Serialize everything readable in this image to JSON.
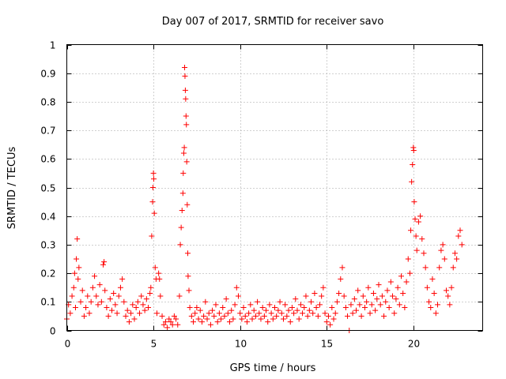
{
  "chart_data": {
    "type": "scatter",
    "title": "Day 007 of 2017, SRMTID for receiver savo",
    "xlabel": "GPS time / hours",
    "ylabel": "SRMTID / TECUs",
    "xlim": [
      0,
      24
    ],
    "ylim": [
      0,
      1
    ],
    "x_ticks": [
      0,
      5,
      10,
      15,
      20
    ],
    "x_tick_labels": [
      "0",
      "5",
      "10",
      "15",
      "20"
    ],
    "y_ticks": [
      0,
      0.1,
      0.2,
      0.3,
      0.4,
      0.5,
      0.6,
      0.7,
      0.8,
      0.9,
      1
    ],
    "y_tick_labels": [
      "0",
      "0.1",
      "0.2",
      "0.3",
      "0.4",
      "0.5",
      "0.6",
      "0.7",
      "0.8",
      "0.9",
      "1"
    ],
    "grid": true,
    "marker": "+",
    "series": [
      {
        "name": "SRMTID",
        "color": "#ff0000",
        "points": [
          [
            0.0,
            0.04
          ],
          [
            0.1,
            0.09
          ],
          [
            0.2,
            0.06
          ],
          [
            0.3,
            0.12
          ],
          [
            0.4,
            0.15
          ],
          [
            0.45,
            0.2
          ],
          [
            0.5,
            0.08
          ],
          [
            0.55,
            0.25
          ],
          [
            0.6,
            0.32
          ],
          [
            0.65,
            0.18
          ],
          [
            0.7,
            0.22
          ],
          [
            0.8,
            0.1
          ],
          [
            0.9,
            0.14
          ],
          [
            1.0,
            0.05
          ],
          [
            1.1,
            0.08
          ],
          [
            1.2,
            0.12
          ],
          [
            1.3,
            0.06
          ],
          [
            1.4,
            0.1
          ],
          [
            1.5,
            0.15
          ],
          [
            1.6,
            0.19
          ],
          [
            1.7,
            0.12
          ],
          [
            1.8,
            0.09
          ],
          [
            1.9,
            0.16
          ],
          [
            2.0,
            0.1
          ],
          [
            2.1,
            0.23
          ],
          [
            2.15,
            0.24
          ],
          [
            2.2,
            0.14
          ],
          [
            2.3,
            0.08
          ],
          [
            2.4,
            0.05
          ],
          [
            2.5,
            0.11
          ],
          [
            2.6,
            0.07
          ],
          [
            2.7,
            0.13
          ],
          [
            2.8,
            0.09
          ],
          [
            2.9,
            0.06
          ],
          [
            3.0,
            0.12
          ],
          [
            3.1,
            0.15
          ],
          [
            3.2,
            0.18
          ],
          [
            3.3,
            0.1
          ],
          [
            3.4,
            0.05
          ],
          [
            3.5,
            0.07
          ],
          [
            3.6,
            0.03
          ],
          [
            3.7,
            0.06
          ],
          [
            3.8,
            0.09
          ],
          [
            3.9,
            0.04
          ],
          [
            4.0,
            0.08
          ],
          [
            4.1,
            0.1
          ],
          [
            4.2,
            0.06
          ],
          [
            4.3,
            0.12
          ],
          [
            4.4,
            0.09
          ],
          [
            4.5,
            0.07
          ],
          [
            4.6,
            0.11
          ],
          [
            4.7,
            0.08
          ],
          [
            4.8,
            0.13
          ],
          [
            4.85,
            0.15
          ],
          [
            4.9,
            0.33
          ],
          [
            4.95,
            0.45
          ],
          [
            4.97,
            0.5
          ],
          [
            5.0,
            0.55
          ],
          [
            5.02,
            0.53
          ],
          [
            5.05,
            0.41
          ],
          [
            5.1,
            0.22
          ],
          [
            5.15,
            0.18
          ],
          [
            5.2,
            0.06
          ],
          [
            5.3,
            0.2
          ],
          [
            5.35,
            0.18
          ],
          [
            5.4,
            0.12
          ],
          [
            5.5,
            0.05
          ],
          [
            5.6,
            0.02
          ],
          [
            5.7,
            0.03
          ],
          [
            5.8,
            0.01
          ],
          [
            5.9,
            0.04
          ],
          [
            6.0,
            0.03
          ],
          [
            6.1,
            0.02
          ],
          [
            6.2,
            0.05
          ],
          [
            6.3,
            0.04
          ],
          [
            6.4,
            0.02
          ],
          [
            6.5,
            0.12
          ],
          [
            6.55,
            0.3
          ],
          [
            6.6,
            0.36
          ],
          [
            6.65,
            0.42
          ],
          [
            6.7,
            0.48
          ],
          [
            6.72,
            0.55
          ],
          [
            6.75,
            0.62
          ],
          [
            6.78,
            0.64
          ],
          [
            6.8,
            0.92
          ],
          [
            6.82,
            0.89
          ],
          [
            6.84,
            0.84
          ],
          [
            6.86,
            0.81
          ],
          [
            6.88,
            0.75
          ],
          [
            6.9,
            0.72
          ],
          [
            6.92,
            0.59
          ],
          [
            6.95,
            0.44
          ],
          [
            6.98,
            0.27
          ],
          [
            7.0,
            0.19
          ],
          [
            7.05,
            0.14
          ],
          [
            7.1,
            0.08
          ],
          [
            7.2,
            0.05
          ],
          [
            7.3,
            0.03
          ],
          [
            7.4,
            0.06
          ],
          [
            7.5,
            0.08
          ],
          [
            7.6,
            0.04
          ],
          [
            7.7,
            0.07
          ],
          [
            7.8,
            0.03
          ],
          [
            7.9,
            0.05
          ],
          [
            8.0,
            0.1
          ],
          [
            8.1,
            0.04
          ],
          [
            8.2,
            0.06
          ],
          [
            8.3,
            0.02
          ],
          [
            8.4,
            0.07
          ],
          [
            8.5,
            0.05
          ],
          [
            8.6,
            0.09
          ],
          [
            8.7,
            0.03
          ],
          [
            8.8,
            0.06
          ],
          [
            8.9,
            0.04
          ],
          [
            9.0,
            0.08
          ],
          [
            9.1,
            0.05
          ],
          [
            9.2,
            0.11
          ],
          [
            9.3,
            0.06
          ],
          [
            9.4,
            0.03
          ],
          [
            9.5,
            0.07
          ],
          [
            9.6,
            0.04
          ],
          [
            9.7,
            0.09
          ],
          [
            9.8,
            0.15
          ],
          [
            9.9,
            0.12
          ],
          [
            10.0,
            0.06
          ],
          [
            10.1,
            0.04
          ],
          [
            10.2,
            0.08
          ],
          [
            10.3,
            0.05
          ],
          [
            10.4,
            0.03
          ],
          [
            10.5,
            0.06
          ],
          [
            10.6,
            0.09
          ],
          [
            10.7,
            0.04
          ],
          [
            10.8,
            0.07
          ],
          [
            10.9,
            0.05
          ],
          [
            11.0,
            0.1
          ],
          [
            11.1,
            0.06
          ],
          [
            11.2,
            0.04
          ],
          [
            11.3,
            0.08
          ],
          [
            11.4,
            0.05
          ],
          [
            11.5,
            0.07
          ],
          [
            11.6,
            0.03
          ],
          [
            11.7,
            0.09
          ],
          [
            11.8,
            0.06
          ],
          [
            11.9,
            0.04
          ],
          [
            12.0,
            0.08
          ],
          [
            12.1,
            0.05
          ],
          [
            12.2,
            0.07
          ],
          [
            12.3,
            0.1
          ],
          [
            12.4,
            0.06
          ],
          [
            12.5,
            0.04
          ],
          [
            12.6,
            0.09
          ],
          [
            12.7,
            0.05
          ],
          [
            12.8,
            0.07
          ],
          [
            12.9,
            0.03
          ],
          [
            13.0,
            0.08
          ],
          [
            13.1,
            0.06
          ],
          [
            13.2,
            0.11
          ],
          [
            13.3,
            0.07
          ],
          [
            13.4,
            0.04
          ],
          [
            13.5,
            0.09
          ],
          [
            13.6,
            0.06
          ],
          [
            13.7,
            0.08
          ],
          [
            13.8,
            0.12
          ],
          [
            13.9,
            0.05
          ],
          [
            14.0,
            0.07
          ],
          [
            14.1,
            0.1
          ],
          [
            14.2,
            0.06
          ],
          [
            14.3,
            0.13
          ],
          [
            14.4,
            0.08
          ],
          [
            14.5,
            0.05
          ],
          [
            14.6,
            0.09
          ],
          [
            14.7,
            0.12
          ],
          [
            14.8,
            0.15
          ],
          [
            14.9,
            0.06
          ],
          [
            15.0,
            0.03
          ],
          [
            15.1,
            0.05
          ],
          [
            15.2,
            0.02
          ],
          [
            15.3,
            0.08
          ],
          [
            15.4,
            0.04
          ],
          [
            15.5,
            0.06
          ],
          [
            15.6,
            0.1
          ],
          [
            15.7,
            0.13
          ],
          [
            15.8,
            0.18
          ],
          [
            15.9,
            0.22
          ],
          [
            16.0,
            0.12
          ],
          [
            16.1,
            0.08
          ],
          [
            16.2,
            0.05
          ],
          [
            16.3,
            0.0
          ],
          [
            16.4,
            0.09
          ],
          [
            16.5,
            0.06
          ],
          [
            16.6,
            0.11
          ],
          [
            16.7,
            0.07
          ],
          [
            16.8,
            0.14
          ],
          [
            16.9,
            0.09
          ],
          [
            17.0,
            0.05
          ],
          [
            17.1,
            0.12
          ],
          [
            17.2,
            0.08
          ],
          [
            17.3,
            0.1
          ],
          [
            17.4,
            0.15
          ],
          [
            17.5,
            0.06
          ],
          [
            17.6,
            0.09
          ],
          [
            17.7,
            0.13
          ],
          [
            17.8,
            0.07
          ],
          [
            17.9,
            0.11
          ],
          [
            18.0,
            0.16
          ],
          [
            18.1,
            0.09
          ],
          [
            18.2,
            0.12
          ],
          [
            18.3,
            0.05
          ],
          [
            18.4,
            0.1
          ],
          [
            18.5,
            0.14
          ],
          [
            18.6,
            0.08
          ],
          [
            18.7,
            0.17
          ],
          [
            18.8,
            0.12
          ],
          [
            18.9,
            0.06
          ],
          [
            19.0,
            0.11
          ],
          [
            19.1,
            0.15
          ],
          [
            19.2,
            0.09
          ],
          [
            19.3,
            0.19
          ],
          [
            19.4,
            0.13
          ],
          [
            19.5,
            0.08
          ],
          [
            19.6,
            0.17
          ],
          [
            19.7,
            0.25
          ],
          [
            19.8,
            0.2
          ],
          [
            19.85,
            0.35
          ],
          [
            19.9,
            0.52
          ],
          [
            19.95,
            0.58
          ],
          [
            20.0,
            0.64
          ],
          [
            20.02,
            0.63
          ],
          [
            20.05,
            0.45
          ],
          [
            20.1,
            0.39
          ],
          [
            20.15,
            0.33
          ],
          [
            20.2,
            0.28
          ],
          [
            20.3,
            0.38
          ],
          [
            20.4,
            0.4
          ],
          [
            20.5,
            0.32
          ],
          [
            20.6,
            0.27
          ],
          [
            20.7,
            0.22
          ],
          [
            20.8,
            0.15
          ],
          [
            20.9,
            0.1
          ],
          [
            21.0,
            0.08
          ],
          [
            21.1,
            0.18
          ],
          [
            21.2,
            0.13
          ],
          [
            21.3,
            0.06
          ],
          [
            21.4,
            0.09
          ],
          [
            21.5,
            0.22
          ],
          [
            21.6,
            0.28
          ],
          [
            21.7,
            0.3
          ],
          [
            21.8,
            0.25
          ],
          [
            21.9,
            0.14
          ],
          [
            22.0,
            0.12
          ],
          [
            22.1,
            0.09
          ],
          [
            22.2,
            0.15
          ],
          [
            22.3,
            0.22
          ],
          [
            22.4,
            0.27
          ],
          [
            22.5,
            0.25
          ],
          [
            22.6,
            0.33
          ],
          [
            22.7,
            0.35
          ],
          [
            22.8,
            0.3
          ]
        ]
      }
    ]
  }
}
